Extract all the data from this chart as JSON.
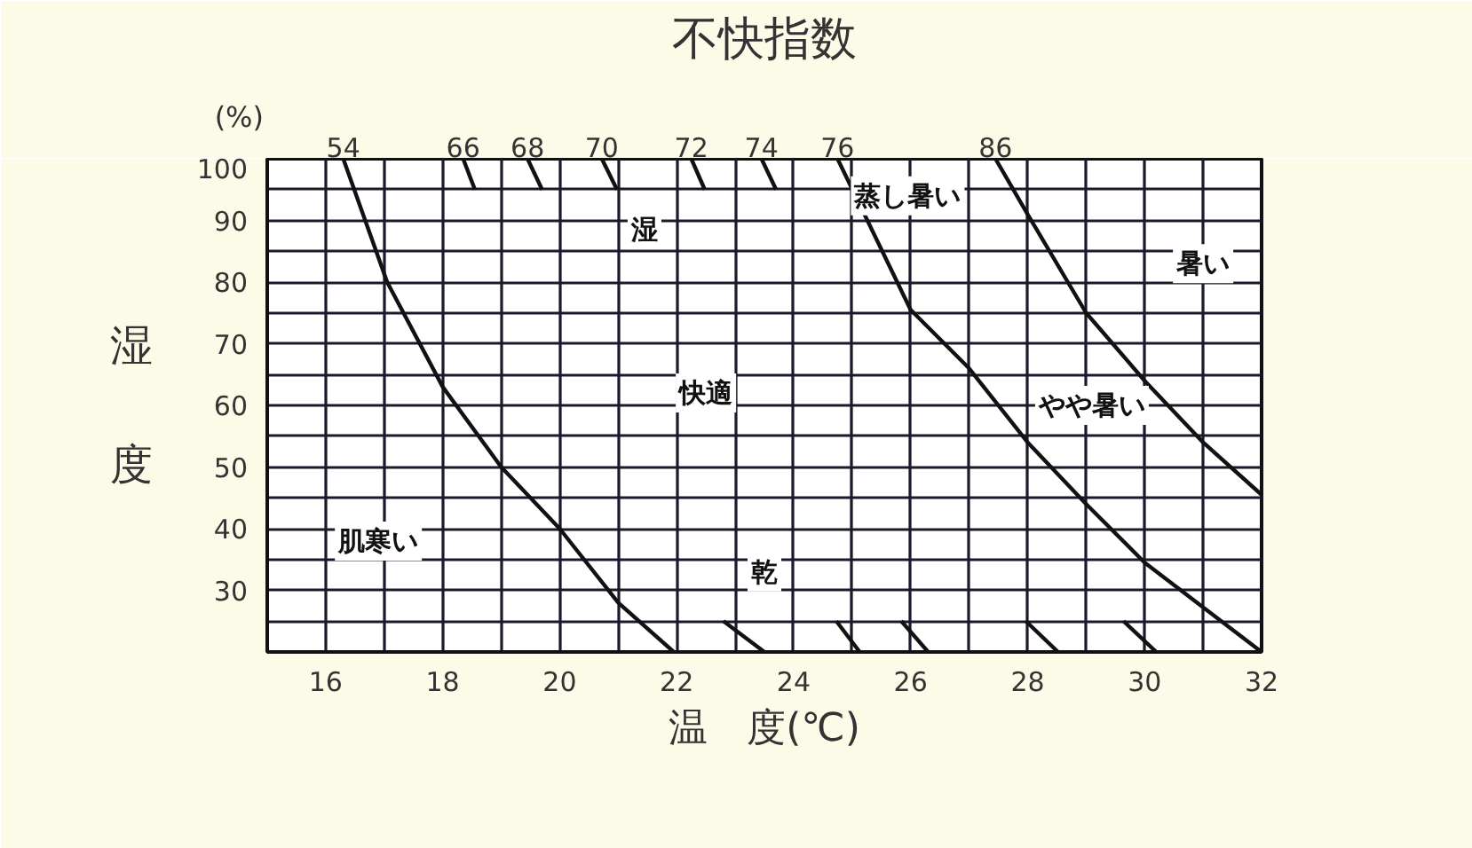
{
  "chart_data": {
    "type": "line",
    "title": "不快指数",
    "xlabel": "温　度(℃)",
    "ylabel": "湿度",
    "xlim": [
      15,
      32
    ],
    "ylim": [
      20,
      100
    ],
    "xticks": [
      {
        "value": 15,
        "label": null
      },
      16,
      {
        "value": 17,
        "label": null
      },
      18,
      {
        "value": 19,
        "label": null
      },
      20,
      {
        "value": 21,
        "label": null
      },
      22,
      {
        "value": 23,
        "label": null
      },
      24,
      {
        "value": 25,
        "label": null
      },
      26,
      {
        "value": 27,
        "label": null
      },
      28,
      {
        "value": 29,
        "label": null
      },
      30,
      {
        "value": 31,
        "label": null
      },
      32
    ],
    "yticks": [
      {
        "value": 20,
        "label": null
      },
      {
        "value": 25,
        "label": null
      },
      30,
      {
        "value": 35,
        "label": null
      },
      40,
      {
        "value": 45,
        "label": null
      },
      50,
      {
        "value": 55,
        "label": null
      },
      60,
      {
        "value": 65,
        "label": null
      },
      70,
      {
        "value": 75,
        "label": null
      },
      80,
      {
        "value": 85,
        "label": null
      },
      90,
      {
        "value": 95,
        "label": null
      },
      100
    ],
    "grid": true,
    "marker": "none",
    "line_style": "solid",
    "series": [
      {
        "color": "#111111",
        "x": [
          16.3,
          17.05,
          18,
          19,
          20,
          21,
          21.95
        ],
        "values": [
          100,
          80,
          63,
          50,
          40,
          28,
          20
        ]
      },
      {
        "color": "#111111",
        "x": [
          24.75,
          26,
          27,
          28,
          29,
          30,
          32
        ],
        "values": [
          100,
          75.5,
          66,
          54,
          44,
          34.5,
          20
        ]
      },
      {
        "color": "#111111",
        "x": [
          27.45,
          28,
          29,
          30,
          31,
          32
        ],
        "values": [
          100,
          91,
          75,
          64,
          54,
          45.5
        ]
      },
      {
        "color": "#111111",
        "x": [
          18.35,
          18.55
        ],
        "values": [
          100,
          95
        ]
      },
      {
        "color": "#111111",
        "x": [
          19.45,
          19.7
        ],
        "values": [
          100,
          95
        ]
      },
      {
        "color": "#111111",
        "x": [
          20.72,
          20.98
        ],
        "values": [
          100,
          95
        ]
      },
      {
        "color": "#111111",
        "x": [
          22.25,
          22.48
        ],
        "values": [
          100,
          95
        ]
      },
      {
        "color": "#111111",
        "x": [
          23.45,
          23.7
        ],
        "values": [
          100,
          95
        ]
      },
      {
        "color": "#111111",
        "x": [
          22.8,
          23.5
        ],
        "values": [
          25,
          20
        ]
      },
      {
        "color": "#111111",
        "x": [
          24.73,
          25.13
        ],
        "values": [
          25,
          20
        ]
      },
      {
        "color": "#111111",
        "x": [
          25.84,
          26.3
        ],
        "values": [
          25,
          20
        ]
      },
      {
        "color": "#111111",
        "x": [
          27.97,
          28.52
        ],
        "values": [
          25,
          20
        ]
      },
      {
        "color": "#111111",
        "x": [
          29.64,
          30.2
        ],
        "values": [
          25,
          20
        ]
      }
    ],
    "annotations": [
      "(%)",
      {
        "text": "54",
        "x": 16.3,
        "y": 100
      },
      {
        "text": "66",
        "x": 18.35,
        "y": 100
      },
      {
        "text": "68",
        "x": 19.45,
        "y": 100
      },
      {
        "text": "70",
        "x": 20.72,
        "y": 100
      },
      {
        "text": "72",
        "x": 22.25,
        "y": 100
      },
      {
        "text": "74",
        "x": 23.45,
        "y": 100
      },
      {
        "text": "76",
        "x": 24.75,
        "y": 100
      },
      {
        "text": "86",
        "x": 27.45,
        "y": 100
      },
      "湿",
      "快適",
      "乾",
      "肌寒い",
      "蒸し暑い",
      "暑い",
      "やや暑い"
    ]
  }
}
